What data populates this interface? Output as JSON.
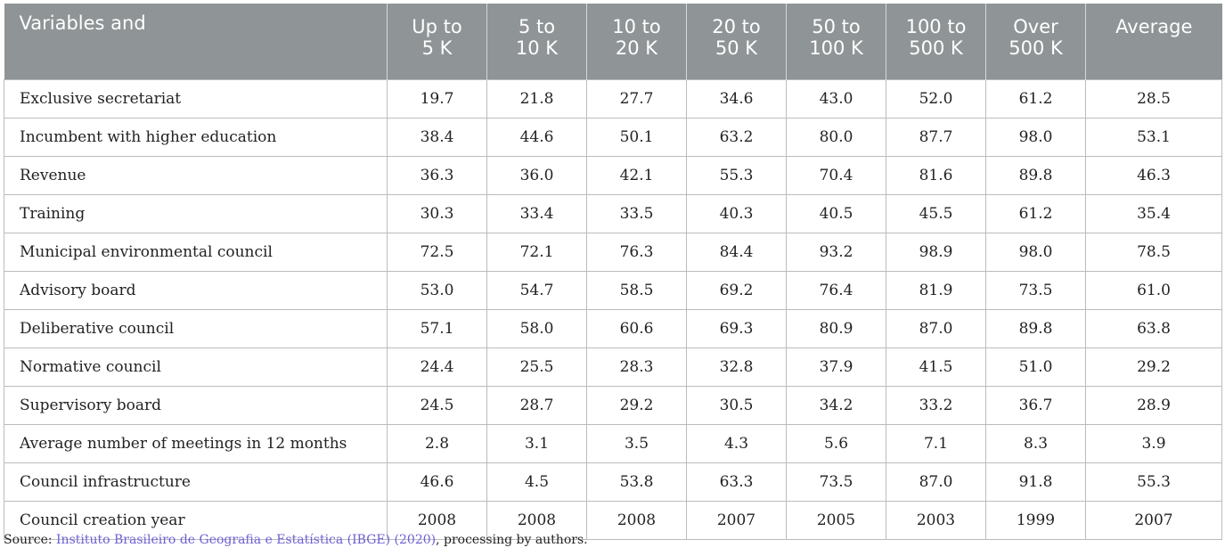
{
  "header": {
    "first": "Variables and",
    "columns": [
      {
        "l1": "Up to",
        "l2": "5 K"
      },
      {
        "l1": "5 to",
        "l2": "10 K"
      },
      {
        "l1": "10 to",
        "l2": "20 K"
      },
      {
        "l1": "20 to",
        "l2": "50 K"
      },
      {
        "l1": "50 to",
        "l2": "100 K"
      },
      {
        "l1": "100 to",
        "l2": "500 K"
      },
      {
        "l1": "Over",
        "l2": "500 K"
      },
      {
        "l1": "Average",
        "l2": ""
      }
    ]
  },
  "rows": [
    {
      "label": "Exclusive secretariat",
      "values": [
        "19.7",
        "21.8",
        "27.7",
        "34.6",
        "43.0",
        "52.0",
        "61.2",
        "28.5"
      ]
    },
    {
      "label": "Incumbent with higher education",
      "values": [
        "38.4",
        "44.6",
        "50.1",
        "63.2",
        "80.0",
        "87.7",
        "98.0",
        "53.1"
      ]
    },
    {
      "label": "Revenue",
      "values": [
        "36.3",
        "36.0",
        "42.1",
        "55.3",
        "70.4",
        "81.6",
        "89.8",
        "46.3"
      ]
    },
    {
      "label": "Training",
      "values": [
        "30.3",
        "33.4",
        "33.5",
        "40.3",
        "40.5",
        "45.5",
        "61.2",
        "35.4"
      ]
    },
    {
      "label": "Municipal environmental council",
      "values": [
        "72.5",
        "72.1",
        "76.3",
        "84.4",
        "93.2",
        "98.9",
        "98.0",
        "78.5"
      ]
    },
    {
      "label": "Advisory board",
      "values": [
        "53.0",
        "54.7",
        "58.5",
        "69.2",
        "76.4",
        "81.9",
        "73.5",
        "61.0"
      ]
    },
    {
      "label": "Deliberative council",
      "values": [
        "57.1",
        "58.0",
        "60.6",
        "69.3",
        "80.9",
        "87.0",
        "89.8",
        "63.8"
      ]
    },
    {
      "label": "Normative council",
      "values": [
        "24.4",
        "25.5",
        "28.3",
        "32.8",
        "37.9",
        "41.5",
        "51.0",
        "29.2"
      ]
    },
    {
      "label": "Supervisory board",
      "values": [
        "24.5",
        "28.7",
        "29.2",
        "30.5",
        "34.2",
        "33.2",
        "36.7",
        "28.9"
      ]
    },
    {
      "label": "Average number of meetings in 12 months",
      "values": [
        "2.8",
        "3.1",
        "3.5",
        "4.3",
        "5.6",
        "7.1",
        "8.3",
        "3.9"
      ]
    },
    {
      "label": "Council infrastructure",
      "values": [
        "46.6",
        "4.5",
        "53.8",
        "63.3",
        "73.5",
        "87.0",
        "91.8",
        "55.3"
      ]
    },
    {
      "label": "Council creation year",
      "values": [
        "2008",
        "2008",
        "2008",
        "2007",
        "2005",
        "2003",
        "1999",
        "2007"
      ]
    }
  ],
  "source": {
    "prefix": "Source: ",
    "link": "Instituto Brasileiro de Geografia e Estatística (IBGE) (2020)",
    "suffix": ", processing by authors."
  }
}
